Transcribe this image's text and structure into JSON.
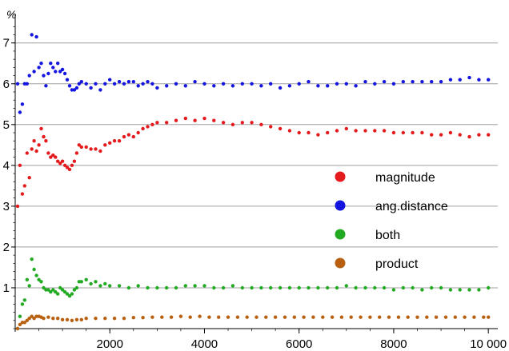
{
  "chart_data": {
    "type": "scatter",
    "title": "",
    "xlabel": "",
    "ylabel": "%",
    "xlim": [
      0,
      10200
    ],
    "ylim": [
      0,
      7.7
    ],
    "grid": true,
    "legend_position": "right",
    "x_ticks": [
      {
        "value": 2000,
        "label": "2000"
      },
      {
        "value": 4000,
        "label": "4000"
      },
      {
        "value": 6000,
        "label": "6000"
      },
      {
        "value": 8000,
        "label": "8000"
      },
      {
        "value": 10000,
        "label": "10 000"
      }
    ],
    "y_ticks": [
      {
        "value": 1,
        "label": "1"
      },
      {
        "value": 2,
        "label": "2"
      },
      {
        "value": 3,
        "label": "3"
      },
      {
        "value": 4,
        "label": "4"
      },
      {
        "value": 5,
        "label": "5"
      },
      {
        "value": 6,
        "label": "6"
      },
      {
        "value": 7,
        "label": "7"
      }
    ],
    "series": [
      {
        "name": "magnitude",
        "color": "#e41a1c",
        "points": [
          [
            50,
            3.0
          ],
          [
            100,
            4.0
          ],
          [
            150,
            3.3
          ],
          [
            200,
            3.5
          ],
          [
            250,
            4.3
          ],
          [
            300,
            3.7
          ],
          [
            350,
            4.4
          ],
          [
            400,
            4.6
          ],
          [
            450,
            4.35
          ],
          [
            500,
            4.5
          ],
          [
            550,
            4.9
          ],
          [
            600,
            4.7
          ],
          [
            650,
            4.6
          ],
          [
            700,
            4.3
          ],
          [
            750,
            4.2
          ],
          [
            800,
            4.25
          ],
          [
            850,
            4.2
          ],
          [
            900,
            4.1
          ],
          [
            950,
            4.05
          ],
          [
            1000,
            4.1
          ],
          [
            1050,
            4.0
          ],
          [
            1100,
            3.95
          ],
          [
            1150,
            3.9
          ],
          [
            1200,
            4.0
          ],
          [
            1250,
            4.1
          ],
          [
            1300,
            4.3
          ],
          [
            1350,
            4.5
          ],
          [
            1400,
            4.45
          ],
          [
            1500,
            4.45
          ],
          [
            1600,
            4.4
          ],
          [
            1700,
            4.4
          ],
          [
            1800,
            4.35
          ],
          [
            1900,
            4.5
          ],
          [
            2000,
            4.55
          ],
          [
            2100,
            4.6
          ],
          [
            2200,
            4.6
          ],
          [
            2300,
            4.7
          ],
          [
            2400,
            4.75
          ],
          [
            2500,
            4.7
          ],
          [
            2600,
            4.8
          ],
          [
            2700,
            4.9
          ],
          [
            2800,
            4.95
          ],
          [
            2900,
            5.0
          ],
          [
            3000,
            5.05
          ],
          [
            3200,
            5.05
          ],
          [
            3400,
            5.1
          ],
          [
            3600,
            5.15
          ],
          [
            3800,
            5.1
          ],
          [
            4000,
            5.15
          ],
          [
            4200,
            5.1
          ],
          [
            4400,
            5.05
          ],
          [
            4600,
            5.0
          ],
          [
            4800,
            5.05
          ],
          [
            5000,
            5.05
          ],
          [
            5200,
            5.0
          ],
          [
            5400,
            4.95
          ],
          [
            5600,
            4.9
          ],
          [
            5800,
            4.85
          ],
          [
            6000,
            4.8
          ],
          [
            6200,
            4.8
          ],
          [
            6400,
            4.75
          ],
          [
            6600,
            4.8
          ],
          [
            6800,
            4.85
          ],
          [
            7000,
            4.9
          ],
          [
            7200,
            4.85
          ],
          [
            7400,
            4.85
          ],
          [
            7600,
            4.85
          ],
          [
            7800,
            4.85
          ],
          [
            8000,
            4.8
          ],
          [
            8200,
            4.8
          ],
          [
            8400,
            4.8
          ],
          [
            8600,
            4.8
          ],
          [
            8800,
            4.75
          ],
          [
            9000,
            4.75
          ],
          [
            9200,
            4.8
          ],
          [
            9400,
            4.75
          ],
          [
            9600,
            4.7
          ],
          [
            9800,
            4.75
          ],
          [
            10000,
            4.75
          ]
        ]
      },
      {
        "name": "ang.distance",
        "color": "#1515e0",
        "points": [
          [
            50,
            6.0
          ],
          [
            100,
            5.3
          ],
          [
            150,
            5.5
          ],
          [
            200,
            6.0
          ],
          [
            250,
            6.0
          ],
          [
            300,
            6.2
          ],
          [
            350,
            7.2
          ],
          [
            400,
            6.3
          ],
          [
            450,
            7.15
          ],
          [
            500,
            6.4
          ],
          [
            550,
            6.5
          ],
          [
            600,
            6.2
          ],
          [
            650,
            5.95
          ],
          [
            700,
            6.25
          ],
          [
            750,
            6.5
          ],
          [
            800,
            6.4
          ],
          [
            850,
            6.3
          ],
          [
            900,
            6.5
          ],
          [
            950,
            6.3
          ],
          [
            1000,
            6.35
          ],
          [
            1050,
            6.25
          ],
          [
            1100,
            6.1
          ],
          [
            1150,
            5.95
          ],
          [
            1200,
            5.85
          ],
          [
            1250,
            5.85
          ],
          [
            1300,
            5.9
          ],
          [
            1350,
            6.0
          ],
          [
            1400,
            6.05
          ],
          [
            1500,
            6.0
          ],
          [
            1600,
            5.9
          ],
          [
            1700,
            6.0
          ],
          [
            1800,
            5.85
          ],
          [
            1900,
            6.0
          ],
          [
            2000,
            6.1
          ],
          [
            2100,
            6.0
          ],
          [
            2200,
            6.05
          ],
          [
            2300,
            6.0
          ],
          [
            2400,
            6.05
          ],
          [
            2500,
            6.05
          ],
          [
            2600,
            5.95
          ],
          [
            2700,
            6.0
          ],
          [
            2800,
            6.05
          ],
          [
            2900,
            6.0
          ],
          [
            3000,
            5.9
          ],
          [
            3200,
            5.95
          ],
          [
            3400,
            6.0
          ],
          [
            3600,
            5.95
          ],
          [
            3800,
            6.05
          ],
          [
            4000,
            6.0
          ],
          [
            4200,
            5.95
          ],
          [
            4400,
            6.0
          ],
          [
            4600,
            5.95
          ],
          [
            4800,
            6.0
          ],
          [
            5000,
            6.0
          ],
          [
            5200,
            5.95
          ],
          [
            5400,
            6.0
          ],
          [
            5600,
            5.9
          ],
          [
            5800,
            5.95
          ],
          [
            6000,
            6.0
          ],
          [
            6200,
            6.05
          ],
          [
            6400,
            5.95
          ],
          [
            6600,
            5.95
          ],
          [
            6800,
            6.0
          ],
          [
            7000,
            6.0
          ],
          [
            7200,
            5.95
          ],
          [
            7400,
            6.05
          ],
          [
            7600,
            6.0
          ],
          [
            7800,
            6.05
          ],
          [
            8000,
            6.0
          ],
          [
            8200,
            6.05
          ],
          [
            8400,
            6.05
          ],
          [
            8600,
            6.05
          ],
          [
            8800,
            6.05
          ],
          [
            9000,
            6.05
          ],
          [
            9200,
            6.1
          ],
          [
            9400,
            6.1
          ],
          [
            9600,
            6.15
          ],
          [
            9800,
            6.1
          ],
          [
            10000,
            6.1
          ]
        ]
      },
      {
        "name": "both",
        "color": "#22aa22",
        "points": [
          [
            50,
            0.0
          ],
          [
            100,
            0.3
          ],
          [
            150,
            0.6
          ],
          [
            200,
            0.7
          ],
          [
            250,
            1.2
          ],
          [
            300,
            1.05
          ],
          [
            350,
            1.7
          ],
          [
            400,
            1.45
          ],
          [
            450,
            1.3
          ],
          [
            500,
            1.2
          ],
          [
            550,
            1.15
          ],
          [
            600,
            1.0
          ],
          [
            650,
            0.95
          ],
          [
            700,
            0.95
          ],
          [
            750,
            0.9
          ],
          [
            800,
            0.95
          ],
          [
            850,
            0.9
          ],
          [
            900,
            0.85
          ],
          [
            950,
            1.0
          ],
          [
            1000,
            0.95
          ],
          [
            1050,
            0.9
          ],
          [
            1100,
            0.85
          ],
          [
            1150,
            0.8
          ],
          [
            1200,
            0.85
          ],
          [
            1250,
            0.95
          ],
          [
            1300,
            1.0
          ],
          [
            1350,
            1.15
          ],
          [
            1400,
            1.15
          ],
          [
            1500,
            1.2
          ],
          [
            1600,
            1.1
          ],
          [
            1700,
            1.15
          ],
          [
            1800,
            1.05
          ],
          [
            1900,
            1.1
          ],
          [
            2000,
            1.05
          ],
          [
            2200,
            1.05
          ],
          [
            2400,
            1.0
          ],
          [
            2600,
            1.05
          ],
          [
            2800,
            1.0
          ],
          [
            3000,
            1.0
          ],
          [
            3200,
            1.0
          ],
          [
            3400,
            1.0
          ],
          [
            3600,
            1.05
          ],
          [
            3800,
            1.05
          ],
          [
            4000,
            1.05
          ],
          [
            4200,
            1.0
          ],
          [
            4400,
            1.0
          ],
          [
            4600,
            1.05
          ],
          [
            4800,
            1.0
          ],
          [
            5000,
            1.0
          ],
          [
            5200,
            1.0
          ],
          [
            5400,
            1.0
          ],
          [
            5600,
            1.0
          ],
          [
            5800,
            1.0
          ],
          [
            6000,
            1.0
          ],
          [
            6200,
            1.0
          ],
          [
            6400,
            1.0
          ],
          [
            6600,
            1.0
          ],
          [
            6800,
            1.0
          ],
          [
            7000,
            1.05
          ],
          [
            7200,
            1.0
          ],
          [
            7400,
            1.0
          ],
          [
            7600,
            1.0
          ],
          [
            7800,
            1.0
          ],
          [
            8000,
            0.95
          ],
          [
            8200,
            1.0
          ],
          [
            8400,
            1.0
          ],
          [
            8600,
            0.95
          ],
          [
            8800,
            1.0
          ],
          [
            9000,
            1.0
          ],
          [
            9200,
            0.95
          ],
          [
            9400,
            0.95
          ],
          [
            9600,
            0.95
          ],
          [
            9800,
            0.95
          ],
          [
            10000,
            1.0
          ]
        ]
      },
      {
        "name": "product",
        "color": "#b8600f",
        "points": [
          [
            50,
            0.0
          ],
          [
            100,
            0.1
          ],
          [
            150,
            0.15
          ],
          [
            200,
            0.15
          ],
          [
            250,
            0.2
          ],
          [
            300,
            0.25
          ],
          [
            350,
            0.3
          ],
          [
            400,
            0.25
          ],
          [
            450,
            0.3
          ],
          [
            500,
            0.3
          ],
          [
            550,
            0.28
          ],
          [
            600,
            0.25
          ],
          [
            700,
            0.28
          ],
          [
            800,
            0.25
          ],
          [
            900,
            0.25
          ],
          [
            1000,
            0.22
          ],
          [
            1100,
            0.22
          ],
          [
            1200,
            0.2
          ],
          [
            1300,
            0.22
          ],
          [
            1400,
            0.22
          ],
          [
            1500,
            0.25
          ],
          [
            1700,
            0.25
          ],
          [
            1900,
            0.25
          ],
          [
            2100,
            0.25
          ],
          [
            2300,
            0.25
          ],
          [
            2500,
            0.27
          ],
          [
            2700,
            0.27
          ],
          [
            2900,
            0.28
          ],
          [
            3100,
            0.28
          ],
          [
            3300,
            0.28
          ],
          [
            3500,
            0.3
          ],
          [
            3700,
            0.28
          ],
          [
            3900,
            0.3
          ],
          [
            4100,
            0.28
          ],
          [
            4300,
            0.28
          ],
          [
            4500,
            0.28
          ],
          [
            4700,
            0.28
          ],
          [
            4900,
            0.28
          ],
          [
            5100,
            0.28
          ],
          [
            5300,
            0.28
          ],
          [
            5500,
            0.28
          ],
          [
            5700,
            0.28
          ],
          [
            5900,
            0.28
          ],
          [
            6100,
            0.28
          ],
          [
            6300,
            0.28
          ],
          [
            6500,
            0.28
          ],
          [
            6700,
            0.28
          ],
          [
            6900,
            0.28
          ],
          [
            7100,
            0.28
          ],
          [
            7300,
            0.28
          ],
          [
            7500,
            0.28
          ],
          [
            7700,
            0.28
          ],
          [
            7900,
            0.28
          ],
          [
            8100,
            0.28
          ],
          [
            8300,
            0.28
          ],
          [
            8500,
            0.28
          ],
          [
            8700,
            0.28
          ],
          [
            8900,
            0.28
          ],
          [
            9100,
            0.28
          ],
          [
            9300,
            0.28
          ],
          [
            9500,
            0.28
          ],
          [
            9700,
            0.28
          ],
          [
            9900,
            0.28
          ],
          [
            10000,
            0.28
          ]
        ]
      }
    ]
  }
}
